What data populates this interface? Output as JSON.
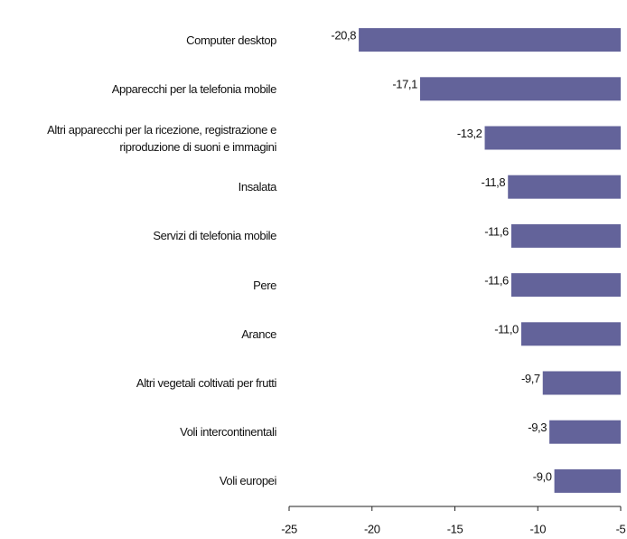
{
  "chart_data": {
    "type": "barh",
    "categories": [
      "Computer desktop",
      "Apparecchi per la telefonia mobile",
      "Altri apparecchi per la ricezione, registrazione e riproduzione di suoni e immagini",
      "Insalata",
      "Servizi di telefonia mobile",
      "Pere",
      "Arance",
      "Altri vegetali coltivati per frutti",
      "Voli intercontinentali",
      "Voli europei"
    ],
    "values": [
      -20.8,
      -17.1,
      -13.2,
      -11.8,
      -11.6,
      -11.6,
      -11.0,
      -9.7,
      -9.3,
      -9.0
    ],
    "value_labels": [
      "-20,8",
      "-17,1",
      "-13,2",
      "-11,8",
      "-11,6",
      "-11,6",
      "-11,0",
      "-9,7",
      "-9,3",
      "-9,0"
    ],
    "color": "#63639a",
    "xlim": [
      -25,
      -5
    ],
    "xticks": [
      -25,
      -20,
      -15,
      -10,
      -5
    ]
  }
}
